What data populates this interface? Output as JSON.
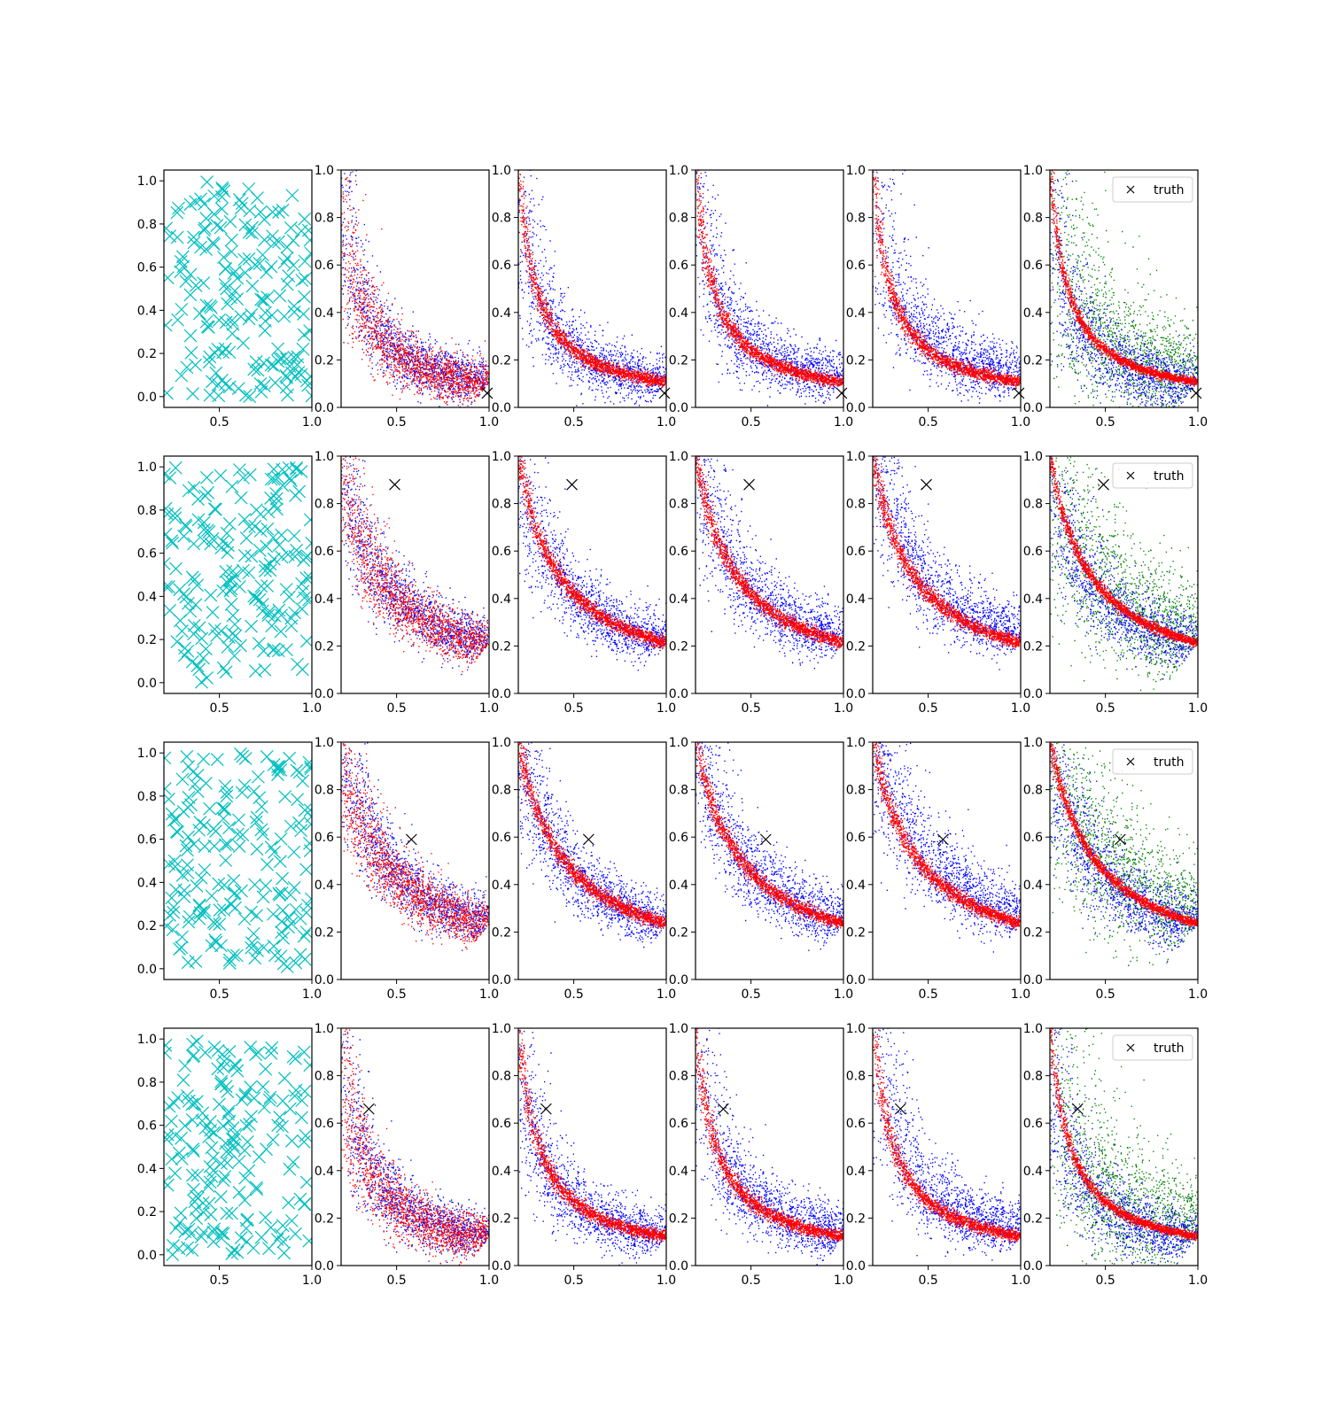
{
  "figure": {
    "rows": 4,
    "cols": 6,
    "colors": {
      "samples": "#00bfbf",
      "series_blue": "#0000ff",
      "series_red": "#ff0000",
      "series_green": "#008000",
      "truth": "#000000"
    },
    "xticks": [
      0.5,
      1.0
    ],
    "yticks_samples": [
      0.0,
      0.2,
      0.4,
      0.6,
      0.8,
      1.0
    ],
    "yticks_scatter": [
      0.0,
      0.2,
      0.4,
      0.6,
      0.8,
      1.0
    ],
    "legend": {
      "label": "truth",
      "placement": "upper right"
    }
  },
  "chart_data": {
    "type": "scatter",
    "layout": "4x6 grid of scatter panels",
    "xlim_samples": [
      0.2,
      1.0
    ],
    "ylim_samples": [
      -0.05,
      1.05
    ],
    "xlim": [
      0.2,
      1.0
    ],
    "ylim": [
      0.0,
      1.0
    ],
    "rows": [
      {
        "truth": [
          0.99,
          0.06
        ],
        "curve_p": 0.095,
        "legend": true
      },
      {
        "truth": [
          0.49,
          0.88
        ],
        "curve_p": 0.215,
        "legend": true
      },
      {
        "truth": [
          0.58,
          0.59
        ],
        "curve_p": 0.245,
        "legend": true
      },
      {
        "truth": [
          0.35,
          0.66
        ],
        "curve_p": 0.11,
        "legend": true
      }
    ]
  }
}
